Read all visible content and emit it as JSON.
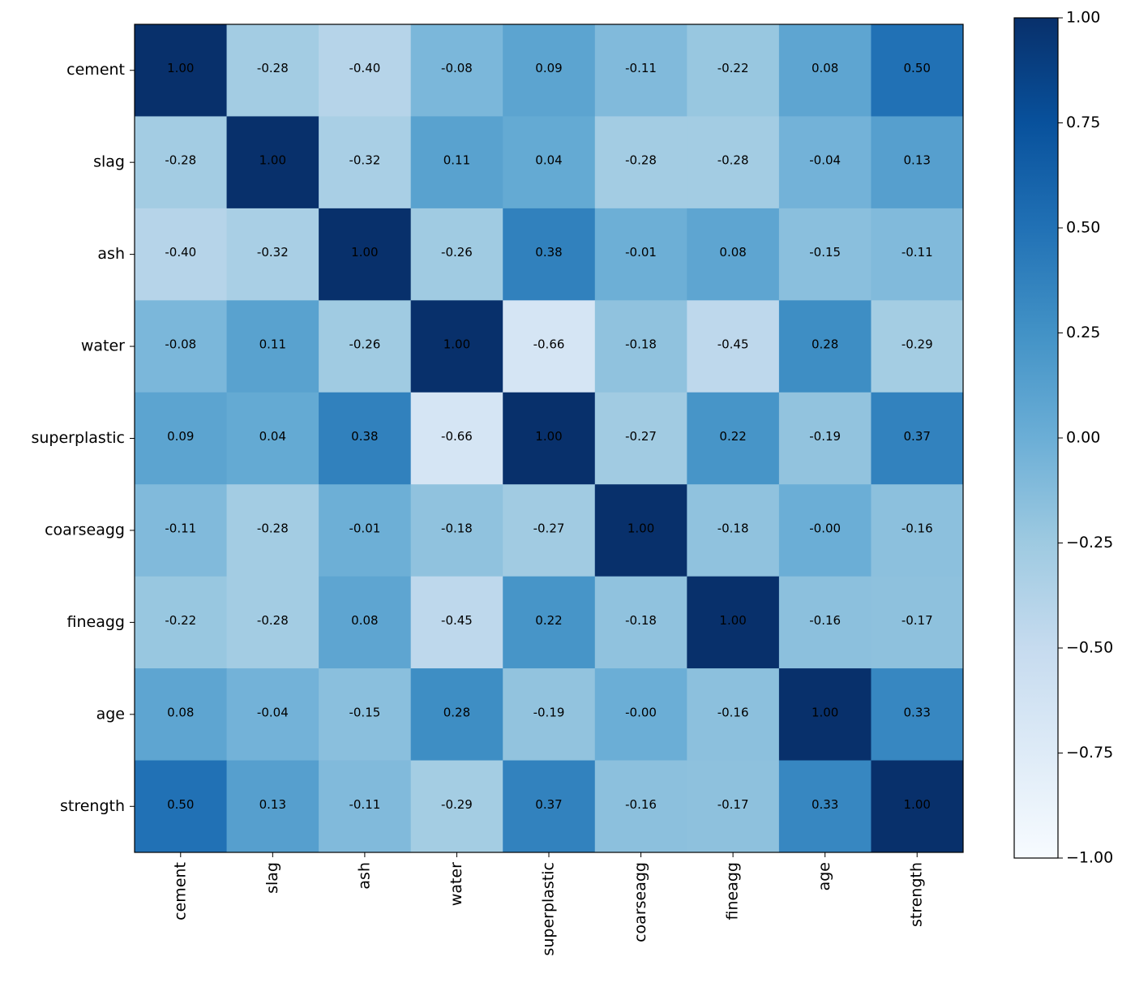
{
  "chart_data": {
    "type": "heatmap",
    "x_categories": [
      "cement",
      "slag",
      "ash",
      "water",
      "superplastic",
      "coarseagg",
      "fineagg",
      "age",
      "strength"
    ],
    "y_categories": [
      "cement",
      "slag",
      "ash",
      "water",
      "superplastic",
      "coarseagg",
      "fineagg",
      "age",
      "strength"
    ],
    "values": [
      [
        1,
        -0.28,
        -0.4,
        -0.08,
        0.09,
        -0.11,
        -0.22,
        0.08,
        0.5
      ],
      [
        -0.28,
        1,
        -0.32,
        0.11,
        0.04,
        -0.28,
        -0.28,
        -0.04,
        0.13
      ],
      [
        -0.4,
        -0.32,
        1,
        -0.26,
        0.38,
        -0.01,
        0.08,
        -0.15,
        -0.11
      ],
      [
        -0.08,
        0.11,
        -0.26,
        1,
        -0.66,
        -0.18,
        -0.45,
        0.28,
        -0.29
      ],
      [
        0.09,
        0.04,
        0.38,
        -0.66,
        1,
        -0.27,
        0.22,
        -0.19,
        0.37
      ],
      [
        -0.11,
        -0.28,
        -0.01,
        -0.18,
        -0.27,
        1,
        -0.18,
        0,
        -0.16
      ],
      [
        -0.22,
        -0.28,
        0.08,
        -0.45,
        0.22,
        -0.18,
        1,
        -0.16,
        -0.17
      ],
      [
        0.08,
        -0.04,
        -0.15,
        0.28,
        -0.19,
        0,
        -0.16,
        1,
        0.33
      ],
      [
        0.5,
        0.13,
        -0.11,
        -0.29,
        0.37,
        -0.16,
        -0.17,
        0.33,
        1
      ]
    ],
    "value_labels": [
      [
        "1.00",
        "-0.28",
        "-0.40",
        "-0.08",
        "0.09",
        "-0.11",
        "-0.22",
        "0.08",
        "0.50"
      ],
      [
        "-0.28",
        "1.00",
        "-0.32",
        "0.11",
        "0.04",
        "-0.28",
        "-0.28",
        "-0.04",
        "0.13"
      ],
      [
        "-0.40",
        "-0.32",
        "1.00",
        "-0.26",
        "0.38",
        "-0.01",
        "0.08",
        "-0.15",
        "-0.11"
      ],
      [
        "-0.08",
        "0.11",
        "-0.26",
        "1.00",
        "-0.66",
        "-0.18",
        "-0.45",
        "0.28",
        "-0.29"
      ],
      [
        "0.09",
        "0.04",
        "0.38",
        "-0.66",
        "1.00",
        "-0.27",
        "0.22",
        "-0.19",
        "0.37"
      ],
      [
        "-0.11",
        "-0.28",
        "-0.01",
        "-0.18",
        "-0.27",
        "1.00",
        "-0.18",
        "-0.00",
        "-0.16"
      ],
      [
        "-0.22",
        "-0.28",
        "0.08",
        "-0.45",
        "0.22",
        "-0.18",
        "1.00",
        "-0.16",
        "-0.17"
      ],
      [
        "0.08",
        "-0.04",
        "-0.15",
        "0.28",
        "-0.19",
        "-0.00",
        "-0.16",
        "1.00",
        "0.33"
      ],
      [
        "0.50",
        "0.13",
        "-0.11",
        "-0.29",
        "0.37",
        "-0.16",
        "-0.17",
        "0.33",
        "1.00"
      ]
    ],
    "colorscale": [
      "#f7fbff",
      "#deebf7",
      "#c6dbef",
      "#9ecae1",
      "#6baed6",
      "#4292c6",
      "#2171b5",
      "#08519c",
      "#08306b"
    ],
    "zlim": [
      -1,
      1
    ],
    "zticks": [
      {
        "value": 1,
        "label": "1.00"
      },
      {
        "value": 0.75,
        "label": "0.75"
      },
      {
        "value": 0.5,
        "label": "0.50"
      },
      {
        "value": 0.25,
        "label": "0.25"
      },
      {
        "value": 0,
        "label": "0.00"
      },
      {
        "value": -0.25,
        "label": "−0.25"
      },
      {
        "value": -0.5,
        "label": "−0.50"
      },
      {
        "value": -0.75,
        "label": "−0.75"
      },
      {
        "value": -1,
        "label": "−1.00"
      }
    ]
  }
}
